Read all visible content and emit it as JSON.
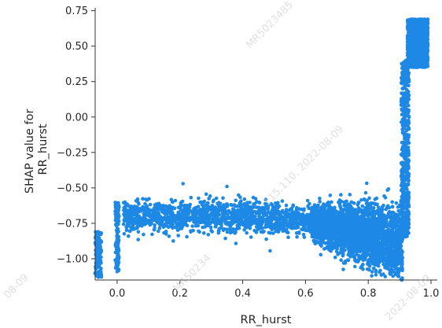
{
  "chart_data": {
    "type": "scatter",
    "xlabel": "RR_hurst",
    "ylabel": [
      "SHAP value for",
      "RR_hurst"
    ],
    "xlim": [
      -0.07,
      1.02
    ],
    "ylim": [
      -1.15,
      0.77
    ],
    "x_ticks": [
      0.0,
      0.2,
      0.4,
      0.6,
      0.8,
      1.0
    ],
    "x_tick_labels": [
      "0.0",
      "0.2",
      "0.4",
      "0.6",
      "0.8",
      "1.0"
    ],
    "y_ticks": [
      0.75,
      0.5,
      0.25,
      0.0,
      -0.25,
      -0.5,
      -0.75,
      -1.0
    ],
    "y_tick_labels": [
      "0.75",
      "0.50",
      "0.25",
      "0.00",
      "−0.25",
      "−0.50",
      "−0.75",
      "−1.00"
    ],
    "grid": false,
    "point_color": "#1e88e5",
    "series": [
      {
        "description_points": [
          [
            -0.06,
            -0.81
          ],
          [
            -0.06,
            -0.86
          ],
          [
            -0.06,
            -0.91
          ],
          [
            -0.06,
            -0.96
          ],
          [
            -0.06,
            -1.01
          ],
          [
            -0.06,
            -1.06
          ],
          [
            -0.06,
            -1.11
          ],
          [
            -0.06,
            -1.13
          ],
          [
            0.0,
            -0.61
          ],
          [
            0.0,
            -0.66
          ],
          [
            0.0,
            -0.71
          ],
          [
            0.0,
            -0.76
          ],
          [
            0.0,
            -0.81
          ],
          [
            0.0,
            -0.86
          ],
          [
            0.0,
            -0.91
          ],
          [
            0.0,
            -0.96
          ],
          [
            0.0,
            -1.01
          ],
          [
            0.0,
            -1.06
          ],
          [
            0.0,
            -1.09
          ],
          [
            0.03,
            -0.72
          ],
          [
            0.04,
            -0.66
          ],
          [
            0.05,
            -0.78
          ],
          [
            0.07,
            -0.7
          ],
          [
            0.09,
            -0.74
          ],
          [
            0.1,
            -0.65
          ],
          [
            0.12,
            -0.69
          ],
          [
            0.14,
            -0.76
          ],
          [
            0.16,
            -0.68
          ],
          [
            0.18,
            -0.72
          ],
          [
            0.2,
            -0.64
          ],
          [
            0.21,
            -0.47
          ],
          [
            0.22,
            -0.7
          ],
          [
            0.24,
            -0.77
          ],
          [
            0.26,
            -0.66
          ],
          [
            0.28,
            -0.72
          ],
          [
            0.3,
            -0.68
          ],
          [
            0.32,
            -0.75
          ],
          [
            0.34,
            -0.62
          ],
          [
            0.35,
            -0.49
          ],
          [
            0.36,
            -0.71
          ],
          [
            0.38,
            -0.79
          ],
          [
            0.4,
            -0.67
          ],
          [
            0.42,
            -0.73
          ],
          [
            0.44,
            -0.7
          ],
          [
            0.46,
            -0.76
          ],
          [
            0.48,
            -0.65
          ],
          [
            0.5,
            -0.72
          ],
          [
            0.52,
            -0.78
          ],
          [
            0.54,
            -0.69
          ],
          [
            0.56,
            -0.75
          ],
          [
            0.58,
            -0.82
          ],
          [
            0.6,
            -0.74
          ],
          [
            0.62,
            -0.79
          ],
          [
            0.64,
            -0.85
          ],
          [
            0.66,
            -0.93
          ],
          [
            0.68,
            -0.88
          ],
          [
            0.7,
            -0.8
          ],
          [
            0.72,
            -0.9
          ],
          [
            0.74,
            -0.95
          ],
          [
            0.76,
            -0.86
          ],
          [
            0.78,
            -1.0
          ],
          [
            0.8,
            -0.92
          ],
          [
            0.82,
            -1.04
          ],
          [
            0.84,
            -0.96
          ],
          [
            0.86,
            -1.06
          ],
          [
            0.88,
            -0.98
          ],
          [
            0.9,
            -1.03
          ],
          [
            0.91,
            -0.55
          ],
          [
            0.92,
            -0.3
          ],
          [
            0.93,
            0.0
          ],
          [
            0.93,
            0.25
          ],
          [
            0.94,
            0.45
          ],
          [
            0.95,
            0.62
          ],
          [
            0.96,
            0.68
          ],
          [
            0.97,
            0.55
          ],
          [
            0.98,
            0.62
          ],
          [
            0.99,
            0.5
          ],
          [
            0.99,
            0.42
          ]
        ],
        "values": []
      }
    ]
  },
  "watermarks": [
    "MR5023485",
    "115.110. 2022-08-09",
    "MR50234",
    "08-09",
    "2022-08-09"
  ]
}
